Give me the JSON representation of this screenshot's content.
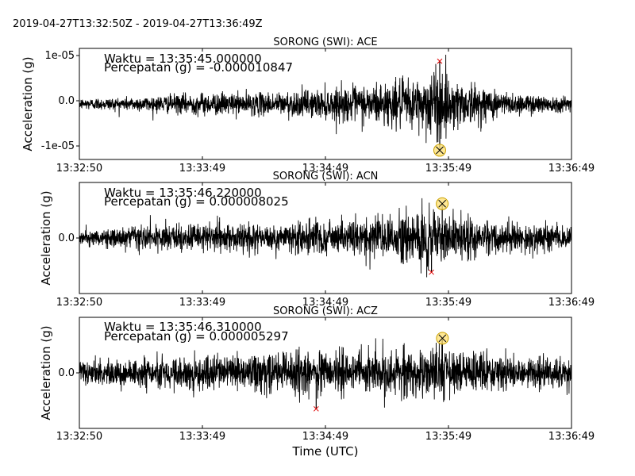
{
  "header": {
    "time_range": "2019-04-27T13:32:50Z  -  2019-04-27T13:36:49Z"
  },
  "xaxis": {
    "label": "Time (UTC)",
    "ticks": [
      "13:32:50",
      "13:33:49",
      "13:34:49",
      "13:35:49",
      "13:36:49"
    ]
  },
  "panels": [
    {
      "title": "SORONG (SWI): ACE",
      "ylabel": "Acceleration (g)",
      "yticks": [
        "1e-05",
        "0.0",
        "-1e-05"
      ],
      "annotation": {
        "waktu": "Waktu = 13:35:45.000000",
        "percepatan": "Percepatan (g) = -0.000010847"
      }
    },
    {
      "title": "SORONG (SWI): ACN",
      "ylabel": "Acceleration (g)",
      "yticks": [
        "0.0"
      ],
      "annotation": {
        "waktu": "Waktu = 13:35:46.220000",
        "percepatan": "Percepatan (g) = 0.000008025"
      }
    },
    {
      "title": "SORONG (SWI): ACZ",
      "ylabel": "Acceleration (g)",
      "yticks": [
        "0.0"
      ],
      "annotation": {
        "waktu": "Waktu = 13:35:46.310000",
        "percepatan": "Percepatan (g) = 0.000005297"
      }
    }
  ],
  "chart_data": [
    {
      "type": "line",
      "title": "SORONG (SWI): ACE",
      "xlabel": "",
      "ylabel": "Acceleration (g)",
      "xlim": [
        "13:32:50",
        "13:36:49"
      ],
      "ylim": [
        -1.3e-05,
        1.3e-05
      ],
      "yticks": [
        1e-05,
        0.0,
        -1e-05
      ],
      "series": [
        {
          "x": [
            "13:32:50",
            "13:33:20",
            "13:33:49",
            "13:34:20",
            "13:34:49",
            "13:35:20",
            "13:35:35",
            "13:35:45",
            "13:35:49",
            "13:36:20",
            "13:36:49"
          ],
          "envelope": [
            1.5e-06,
            2e-06,
            3e-06,
            3e-06,
            4e-06,
            6e-06,
            7e-06,
            1.08e-05,
            7e-06,
            3e-06,
            2e-06
          ]
        }
      ],
      "min_marker": {
        "x": "13:35:45.000000",
        "y": -1.0847e-05
      },
      "max_marker": {
        "x": "13:35:45",
        "y": 1e-05
      }
    },
    {
      "type": "line",
      "title": "SORONG (SWI): ACN",
      "xlabel": "",
      "ylabel": "Acceleration (g)",
      "xlim": [
        "13:32:50",
        "13:36:49"
      ],
      "ylim": [
        -1.3e-05,
        1.3e-05
      ],
      "yticks": [
        0.0
      ],
      "series": [
        {
          "x": [
            "13:32:50",
            "13:33:20",
            "13:33:49",
            "13:34:20",
            "13:34:49",
            "13:35:20",
            "13:35:35",
            "13:35:46",
            "13:35:49",
            "13:36:20",
            "13:36:49"
          ],
          "envelope": [
            2e-06,
            3e-06,
            4e-06,
            4e-06,
            5e-06,
            6e-06,
            7e-06,
            8e-06,
            6e-06,
            4e-06,
            3e-06
          ]
        }
      ],
      "max_marker": {
        "x": "13:35:46.220000",
        "y": 8.025e-06
      },
      "min_marker": {
        "x": "13:35:41",
        "y": -8e-06
      }
    },
    {
      "type": "line",
      "title": "SORONG (SWI): ACZ",
      "xlabel": "Time (UTC)",
      "ylabel": "Acceleration (g)",
      "xlim": [
        "13:32:50",
        "13:36:49"
      ],
      "ylim": [
        -8.5e-06,
        8.5e-06
      ],
      "yticks": [
        0.0
      ],
      "series": [
        {
          "x": [
            "13:32:50",
            "13:33:20",
            "13:33:49",
            "13:34:20",
            "13:34:49",
            "13:35:20",
            "13:35:35",
            "13:35:46",
            "13:35:49",
            "13:36:20",
            "13:36:49"
          ],
          "envelope": [
            2e-06,
            2.5e-06,
            3e-06,
            3.5e-06,
            4e-06,
            4e-06,
            4e-06,
            5.3e-06,
            4e-06,
            3e-06,
            2.5e-06
          ]
        }
      ],
      "max_marker": {
        "x": "13:35:46.310000",
        "y": 5.297e-06
      },
      "min_marker": {
        "x": "13:34:45",
        "y": -5.5e-06
      }
    }
  ]
}
